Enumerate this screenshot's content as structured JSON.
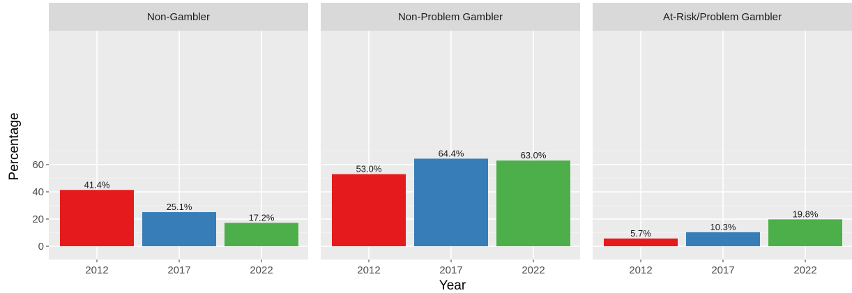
{
  "chart_data": {
    "type": "bar",
    "xlabel": "Year",
    "ylabel": "Percentage",
    "ylim": [
      0,
      77
    ],
    "yticks": [
      0,
      20,
      40,
      60
    ],
    "categories": [
      "2012",
      "2017",
      "2022"
    ],
    "colors": [
      "#e41a1c",
      "#377eb8",
      "#4daf4a"
    ],
    "grid": true,
    "panels": [
      {
        "title": "Non-Gambler",
        "values": [
          41.4,
          25.1,
          17.2
        ],
        "labels": [
          "41.4%",
          "25.1%",
          "17.2%"
        ]
      },
      {
        "title": "Non-Problem Gambler",
        "values": [
          53.0,
          64.4,
          63.0
        ],
        "labels": [
          "53.0%",
          "64.4%",
          "63.0%"
        ]
      },
      {
        "title": "At-Risk/Problem Gambler",
        "values": [
          5.7,
          10.3,
          19.8
        ],
        "labels": [
          "5.7%",
          "10.3%",
          "19.8%"
        ]
      }
    ]
  }
}
